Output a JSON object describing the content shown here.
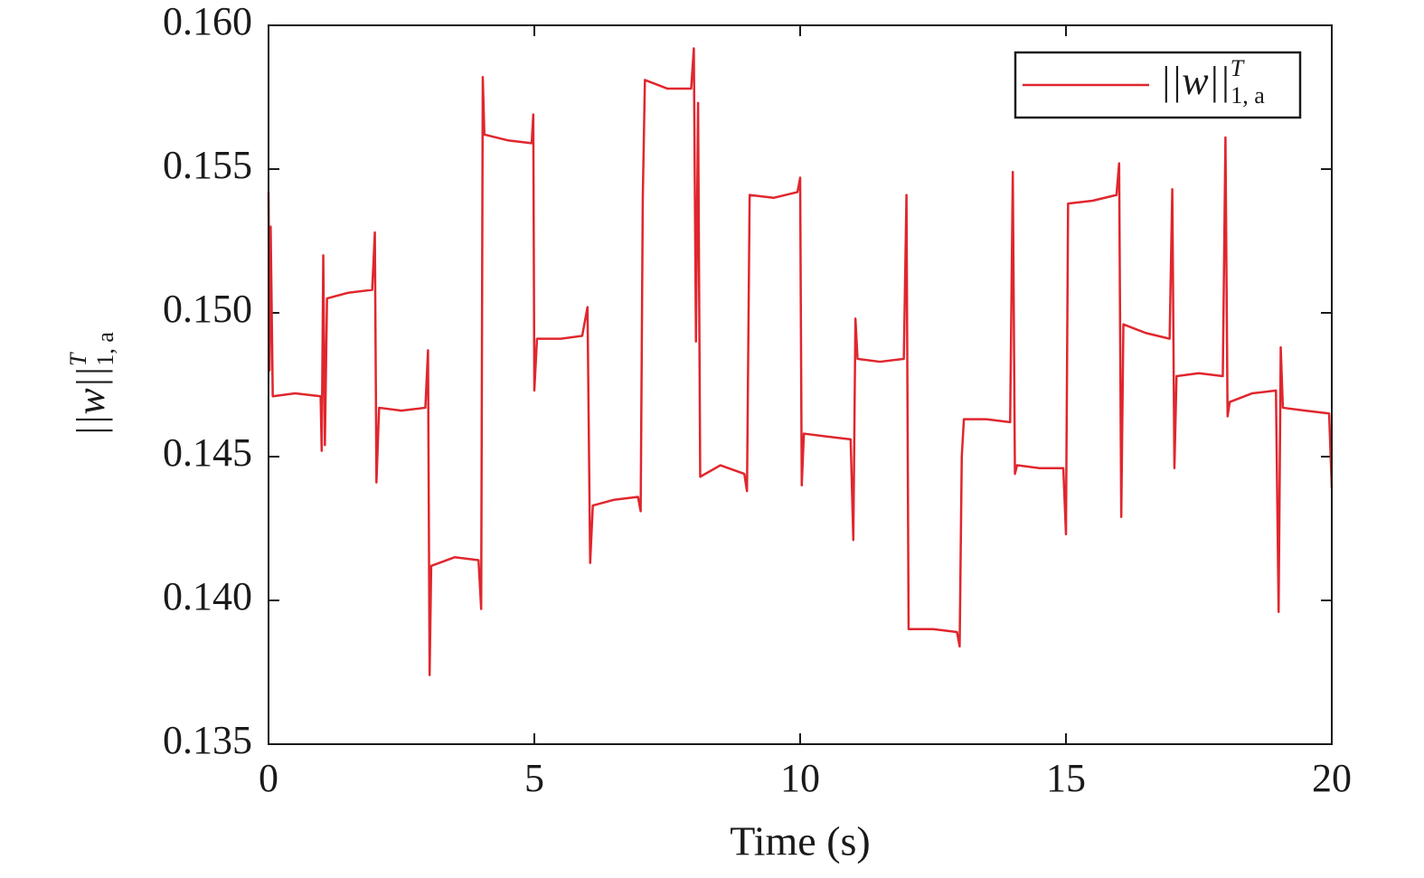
{
  "chart_data": {
    "type": "line",
    "x_label": "Time (s)",
    "y_label": {
      "base": "||w||",
      "sup": "T",
      "sub": "1, a"
    },
    "xlim": [
      0,
      20
    ],
    "xticks": [
      0,
      5,
      10,
      15,
      20
    ],
    "ylim": [
      0.135,
      0.16
    ],
    "yticks": [
      {
        "value": 0.135,
        "label": "0.135"
      },
      {
        "value": 0.14,
        "label": "0.140"
      },
      {
        "value": 0.145,
        "label": "0.145"
      },
      {
        "value": 0.15,
        "label": "0.150"
      },
      {
        "value": 0.155,
        "label": "0.155"
      },
      {
        "value": 0.16,
        "label": "0.160"
      }
    ],
    "legend": "upper right",
    "grid": false,
    "x": [
      0,
      0.02,
      0.04,
      0.08,
      0.5,
      0.98,
      1.0,
      1.03,
      1.06,
      1.1,
      1.5,
      1.95,
      2.0,
      2.03,
      2.08,
      2.5,
      2.95,
      3.0,
      3.03,
      3.06,
      3.5,
      3.95,
      4.0,
      4.03,
      4.06,
      4.5,
      4.95,
      4.98,
      5.0,
      5.05,
      5.5,
      5.9,
      6.0,
      6.05,
      6.1,
      6.5,
      6.95,
      7.0,
      7.04,
      7.08,
      7.5,
      7.95,
      8.0,
      8.04,
      8.08,
      8.12,
      8.5,
      8.95,
      9.0,
      9.05,
      9.5,
      9.95,
      10.0,
      10.03,
      10.07,
      10.5,
      10.95,
      11.0,
      11.04,
      11.08,
      11.5,
      11.95,
      12.0,
      12.04,
      12.5,
      12.95,
      13.0,
      13.04,
      13.08,
      13.5,
      13.95,
      14.0,
      14.04,
      14.08,
      14.5,
      14.95,
      15.0,
      15.04,
      15.5,
      15.95,
      16.0,
      16.04,
      16.08,
      16.5,
      16.95,
      17.0,
      17.04,
      17.08,
      17.5,
      17.95,
      18.0,
      18.04,
      18.08,
      18.5,
      18.95,
      19.0,
      19.04,
      19.08,
      19.5,
      19.95,
      20.0
    ],
    "series": [
      {
        "name": "||w||",
        "name_sup": "T",
        "name_sub": "1, a",
        "color": "#e0262d",
        "values": [
          0.1542,
          0.148,
          0.153,
          0.1471,
          0.1472,
          0.1471,
          0.1452,
          0.152,
          0.1454,
          0.1505,
          0.1507,
          0.1508,
          0.1528,
          0.1441,
          0.1467,
          0.1466,
          0.1467,
          0.1487,
          0.1374,
          0.1412,
          0.1415,
          0.1414,
          0.1397,
          0.1582,
          0.1562,
          0.156,
          0.1559,
          0.1569,
          0.1473,
          0.1491,
          0.1491,
          0.1492,
          0.1502,
          0.1413,
          0.1433,
          0.1435,
          0.1436,
          0.1431,
          0.154,
          0.1581,
          0.1578,
          0.1578,
          0.1592,
          0.149,
          0.1573,
          0.1443,
          0.1447,
          0.1444,
          0.1438,
          0.1541,
          0.154,
          0.1542,
          0.1547,
          0.144,
          0.1458,
          0.1457,
          0.1456,
          0.1421,
          0.1498,
          0.1484,
          0.1483,
          0.1484,
          0.1541,
          0.139,
          0.139,
          0.1389,
          0.1384,
          0.145,
          0.1463,
          0.1463,
          0.1462,
          0.1549,
          0.1444,
          0.1447,
          0.1446,
          0.1446,
          0.1423,
          0.1538,
          0.1539,
          0.1541,
          0.1552,
          0.1429,
          0.1496,
          0.1493,
          0.1491,
          0.1543,
          0.1446,
          0.1478,
          0.1479,
          0.1478,
          0.1561,
          0.1464,
          0.1469,
          0.1472,
          0.1473,
          0.1396,
          0.1488,
          0.1467,
          0.1466,
          0.1465,
          0.1439
        ]
      }
    ]
  }
}
